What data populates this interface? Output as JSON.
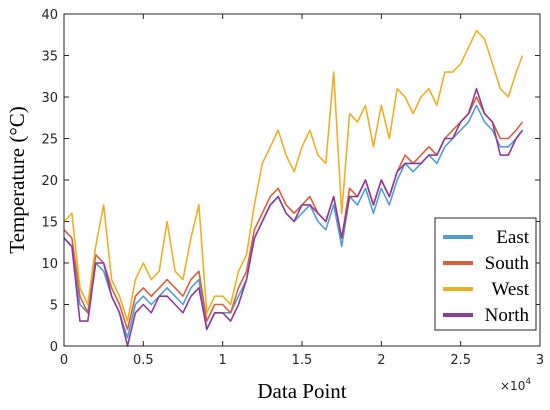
{
  "chart_data": {
    "type": "line",
    "xlabel": "Data Point",
    "ylabel": "Temperature (°C)",
    "x_exponent_label": "×10",
    "x_exponent_power": "4",
    "xlim": [
      0,
      30000
    ],
    "ylim": [
      0,
      40
    ],
    "x_ticks": [
      0,
      5000,
      10000,
      15000,
      20000,
      25000,
      30000
    ],
    "x_tick_labels": [
      "0",
      "0.5",
      "1",
      "1.5",
      "2",
      "2.5",
      "3"
    ],
    "y_ticks": [
      0,
      5,
      10,
      15,
      20,
      25,
      30,
      35,
      40
    ],
    "y_tick_labels": [
      "0",
      "5",
      "10",
      "15",
      "20",
      "25",
      "30",
      "35",
      "40"
    ],
    "grid": false,
    "legend_position": "lower-right",
    "x": [
      0,
      500,
      1000,
      1500,
      2000,
      2500,
      3000,
      3500,
      4000,
      4500,
      5000,
      5500,
      6000,
      6500,
      7000,
      7500,
      8000,
      8500,
      9000,
      9500,
      10000,
      10500,
      11000,
      11500,
      12000,
      12500,
      13000,
      13500,
      14000,
      14500,
      15000,
      15500,
      16000,
      16500,
      17000,
      17500,
      18000,
      18500,
      19000,
      19500,
      20000,
      20500,
      21000,
      21500,
      22000,
      22500,
      23000,
      23500,
      24000,
      24500,
      25000,
      25500,
      26000,
      26500,
      27000,
      27500,
      28000,
      28500,
      28900
    ],
    "series": [
      {
        "name": "East",
        "color": "#4f9fd6",
        "values": [
          13,
          12,
          5,
          4,
          10,
          9,
          6,
          4,
          1,
          5,
          6,
          5,
          6,
          7,
          6,
          5,
          7,
          8,
          2,
          4,
          4,
          4,
          6,
          8,
          13,
          15,
          17,
          18,
          16,
          15,
          16,
          17,
          15,
          14,
          17,
          12,
          18,
          17,
          19,
          16,
          19,
          17,
          20,
          22,
          21,
          22,
          23,
          22,
          24,
          25,
          26,
          27,
          29,
          27,
          26,
          24,
          24,
          25,
          26
        ]
      },
      {
        "name": "South",
        "color": "#d9603b",
        "values": [
          14,
          13,
          6,
          4,
          11,
          10,
          7,
          5,
          2,
          6,
          7,
          6,
          7,
          8,
          7,
          6,
          8,
          9,
          3,
          5,
          5,
          4,
          7,
          9,
          14,
          16,
          18,
          19,
          17,
          16,
          17,
          18,
          16,
          15,
          18,
          13,
          19,
          18,
          20,
          17,
          20,
          18,
          21,
          23,
          22,
          23,
          24,
          23,
          25,
          26,
          27,
          28,
          30,
          28,
          27,
          25,
          25,
          26,
          27
        ]
      },
      {
        "name": "West",
        "color": "#edb120",
        "values": [
          15,
          16,
          7,
          5,
          12,
          17,
          8,
          6,
          3,
          8,
          10,
          8,
          9,
          15,
          9,
          8,
          13,
          17,
          4,
          6,
          6,
          5,
          9,
          11,
          17,
          22,
          24,
          26,
          23,
          21,
          24,
          26,
          23,
          22,
          33,
          16,
          28,
          27,
          29,
          24,
          29,
          25,
          31,
          30,
          28,
          30,
          31,
          29,
          33,
          33,
          34,
          36,
          38,
          37,
          34,
          31,
          30,
          33,
          35
        ]
      },
      {
        "name": "North",
        "color": "#8e3b9c",
        "values": [
          13,
          12,
          3,
          3,
          10,
          10,
          6,
          4,
          0,
          4,
          5,
          4,
          6,
          6,
          5,
          4,
          6,
          7,
          2,
          4,
          4,
          3,
          5,
          8,
          13,
          15,
          17,
          18,
          16,
          15,
          17,
          17,
          16,
          15,
          18,
          13,
          18,
          18,
          20,
          17,
          20,
          18,
          21,
          22,
          22,
          22,
          23,
          23,
          25,
          25,
          27,
          28,
          31,
          28,
          27,
          23,
          23,
          25,
          26
        ]
      }
    ]
  }
}
